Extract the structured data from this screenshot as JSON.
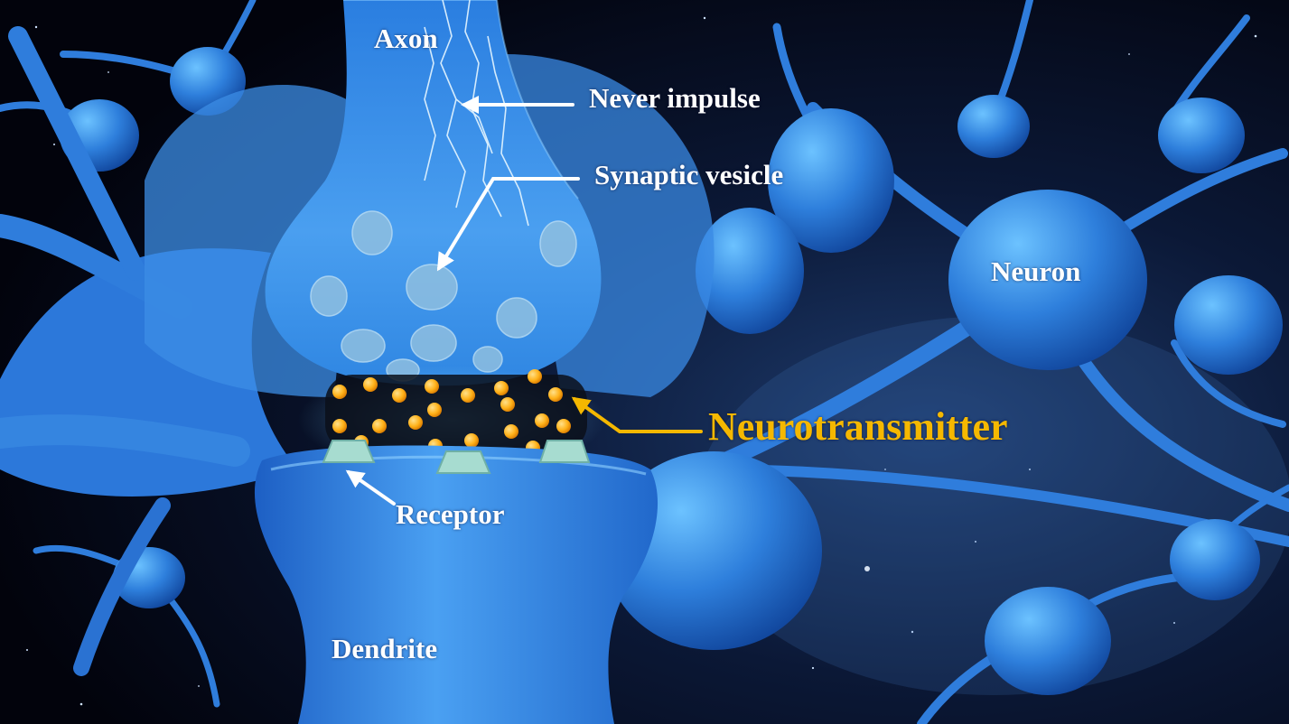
{
  "diagram": {
    "labels": {
      "axon": "Axon",
      "nerve_impulse": "Never impulse",
      "synaptic_vesicle": "Synaptic vesicle",
      "neuron": "Neuron",
      "neurotransmitter": "Neurotransmitter",
      "receptor": "Receptor",
      "dendrite": "Dendrite"
    },
    "colors": {
      "label_text": "#ffffff",
      "neurotransmitter_label": "#f5b800",
      "neurotransmitter_dots": "#ffb21a",
      "background": "#02030c",
      "cell": "#2a74d6",
      "cell_highlight": "#5aa8f2"
    }
  }
}
